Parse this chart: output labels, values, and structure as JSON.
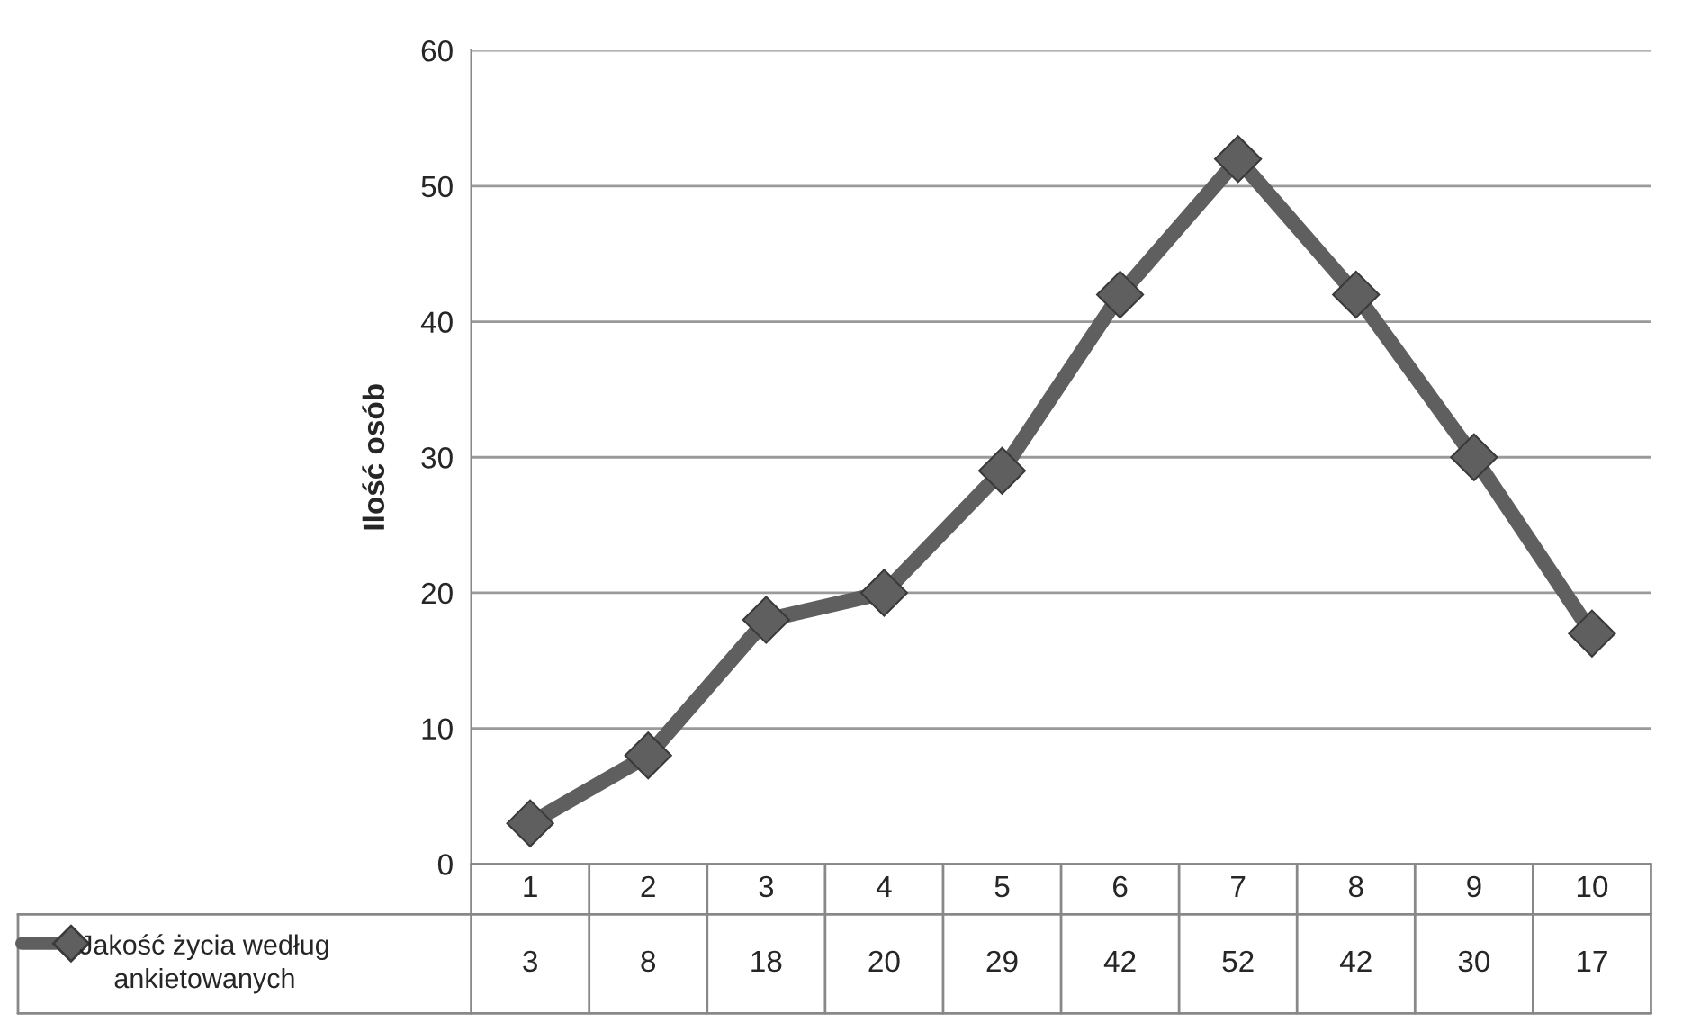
{
  "chart_data": {
    "type": "line",
    "ylabel": "Ilość osób",
    "categories": [
      "1",
      "2",
      "3",
      "4",
      "5",
      "6",
      "7",
      "8",
      "9",
      "10"
    ],
    "series": [
      {
        "name": "Jakość życia według ankietowanych",
        "color": "#5f5f5f",
        "values": [
          3,
          8,
          18,
          20,
          29,
          42,
          52,
          42,
          30,
          17
        ]
      }
    ],
    "ylim": [
      0,
      60
    ],
    "yticks": [
      0,
      10,
      20,
      30,
      40,
      50,
      60
    ],
    "grid": "y",
    "marker": "diamond",
    "line_style": "solid",
    "data_labels": true,
    "legend": "bottom"
  }
}
